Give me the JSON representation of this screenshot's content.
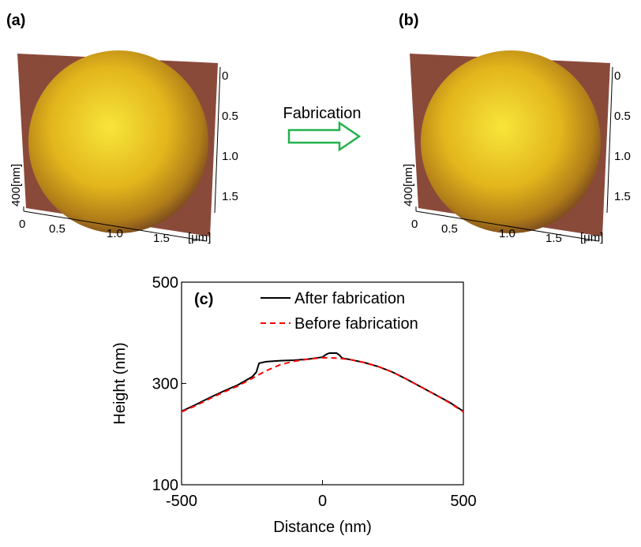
{
  "panels": [
    {
      "label": "(a)",
      "right_ticks": [
        "0",
        "0.5",
        "1.0",
        "1.5"
      ],
      "bottom_ticks": [
        "0",
        "0.5",
        "1.0",
        "1.5"
      ],
      "unit": "[μm]",
      "z_label": "400[nm]"
    },
    {
      "label": "(b)",
      "right_ticks": [
        "0",
        "0.5",
        "1.0",
        "1.5"
      ],
      "bottom_ticks": [
        "0",
        "0.5",
        "1.0",
        "1.5"
      ],
      "unit": "[μm]",
      "z_label": "400[nm]"
    }
  ],
  "arrow_label": "Fabrication",
  "chart_data": {
    "type": "line",
    "annotation": "(c)",
    "x_label": "Distance (nm)",
    "y_label": "Height (nm)",
    "xlim": [
      -500,
      500
    ],
    "ylim": [
      100,
      500
    ],
    "xticks": [
      -500,
      0,
      500
    ],
    "yticks": [
      100,
      300,
      500
    ],
    "legend": "upper right",
    "series": [
      {
        "name": "After fabrication",
        "color": "#000000",
        "dash": "solid",
        "x": [
          -500,
          -450,
          -400,
          -350,
          -300,
          -250,
          -235,
          -225,
          -200,
          -150,
          -100,
          -50,
          0,
          15,
          25,
          50,
          60,
          70,
          100,
          150,
          200,
          250,
          300,
          350,
          400,
          450,
          500
        ],
        "values": [
          245,
          258,
          272,
          285,
          297,
          313,
          322,
          340,
          343,
          345,
          346,
          348,
          352,
          358,
          360,
          360,
          356,
          350,
          347,
          341,
          333,
          322,
          308,
          293,
          278,
          263,
          245
        ]
      },
      {
        "name": "Before fabrication",
        "color": "#ff0000",
        "dash": "dashed",
        "x": [
          -500,
          -450,
          -400,
          -350,
          -300,
          -250,
          -200,
          -150,
          -100,
          -50,
          0,
          50,
          100,
          150,
          200,
          250,
          300,
          350,
          400,
          450,
          500
        ],
        "values": [
          244,
          256,
          270,
          283,
          295,
          310,
          325,
          337,
          344,
          348,
          351,
          350,
          347,
          341,
          333,
          322,
          308,
          293,
          278,
          262,
          244
        ]
      }
    ]
  }
}
